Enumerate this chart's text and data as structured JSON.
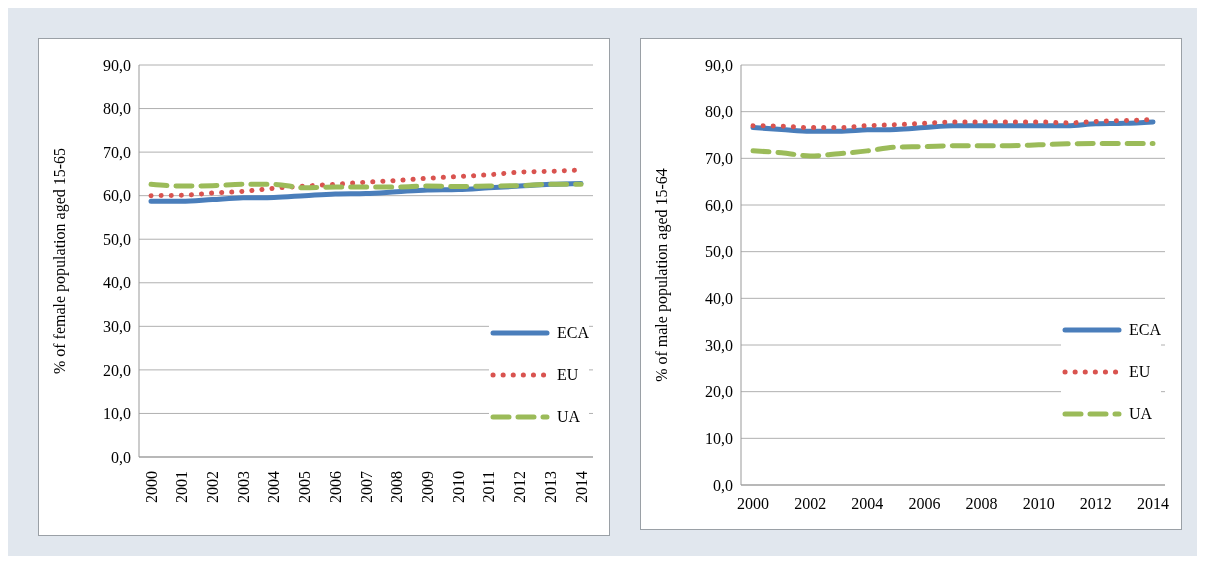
{
  "chart_data": [
    {
      "type": "line",
      "ylabel": "% of female population aged 15-65",
      "categories": [
        "2000",
        "2001",
        "2002",
        "2003",
        "2004",
        "2005",
        "2006",
        "2007",
        "2008",
        "2009",
        "2010",
        "2011",
        "2012",
        "2013",
        "2014"
      ],
      "ylim": [
        0,
        90
      ],
      "yticks": [
        {
          "value": 0,
          "label": "0,0"
        },
        {
          "value": 10,
          "label": "10,0"
        },
        {
          "value": 20,
          "label": "20,0"
        },
        {
          "value": 30,
          "label": "30,0"
        },
        {
          "value": 40,
          "label": "40,0"
        },
        {
          "value": 50,
          "label": "50,0"
        },
        {
          "value": 60,
          "label": "60,0"
        },
        {
          "value": 70,
          "label": "70,0"
        },
        {
          "value": 80,
          "label": "80,0"
        },
        {
          "value": 90,
          "label": "90,0"
        }
      ],
      "grid": "y",
      "legend": "right",
      "marker": "none",
      "series": [
        {
          "name": "ECA",
          "color": "#4a7ebb",
          "line_style": "solid",
          "values": [
            58.7,
            58.7,
            59.1,
            59.5,
            59.6,
            60.0,
            60.4,
            60.5,
            60.9,
            61.3,
            61.4,
            61.8,
            62.2,
            62.6,
            62.8
          ]
        },
        {
          "name": "EU",
          "color": "#d9534f",
          "line_style": "dotted",
          "values": [
            60.0,
            60.1,
            60.6,
            61.0,
            61.7,
            62.2,
            62.6,
            63.1,
            63.5,
            64.0,
            64.4,
            64.8,
            65.4,
            65.6,
            65.9
          ]
        },
        {
          "name": "UA",
          "color": "#9bbb59",
          "line_style": "dashed",
          "values": [
            62.6,
            62.2,
            62.3,
            62.6,
            62.6,
            61.8,
            62.0,
            62.0,
            62.0,
            62.2,
            62.1,
            62.2,
            62.3,
            62.6,
            62.6
          ]
        }
      ]
    },
    {
      "type": "line",
      "ylabel": "% of male population aged 15-64",
      "categories": [
        "2000",
        null,
        "2002",
        null,
        "2004",
        null,
        "2006",
        null,
        "2008",
        null,
        "2010",
        null,
        "2012",
        null,
        "2014"
      ],
      "ylim": [
        0,
        90
      ],
      "yticks": [
        {
          "value": 0,
          "label": "0,0"
        },
        {
          "value": 10,
          "label": "10,0"
        },
        {
          "value": 20,
          "label": "20,0"
        },
        {
          "value": 30,
          "label": "30,0"
        },
        {
          "value": 40,
          "label": "40,0"
        },
        {
          "value": 50,
          "label": "50,0"
        },
        {
          "value": 60,
          "label": "60,0"
        },
        {
          "value": 70,
          "label": "70,0"
        },
        {
          "value": 80,
          "label": "80,0"
        },
        {
          "value": 90,
          "label": "90,0"
        }
      ],
      "grid": "y",
      "legend": "right",
      "marker": "none",
      "series": [
        {
          "name": "ECA",
          "color": "#4a7ebb",
          "line_style": "solid",
          "values": [
            76.6,
            76.2,
            75.8,
            75.8,
            76.1,
            76.2,
            76.6,
            77.0,
            77.0,
            77.0,
            77.0,
            77.0,
            77.4,
            77.5,
            77.8
          ]
        },
        {
          "name": "EU",
          "color": "#d9534f",
          "line_style": "dotted",
          "values": [
            77.0,
            76.9,
            76.6,
            76.6,
            77.0,
            77.2,
            77.5,
            77.8,
            77.8,
            77.8,
            77.8,
            77.6,
            77.9,
            78.1,
            78.3
          ]
        },
        {
          "name": "UA",
          "color": "#9bbb59",
          "line_style": "dashed",
          "values": [
            71.6,
            71.2,
            70.5,
            71.0,
            71.6,
            72.4,
            72.5,
            72.7,
            72.7,
            72.7,
            72.9,
            73.1,
            73.2,
            73.2,
            73.2
          ]
        }
      ]
    }
  ]
}
